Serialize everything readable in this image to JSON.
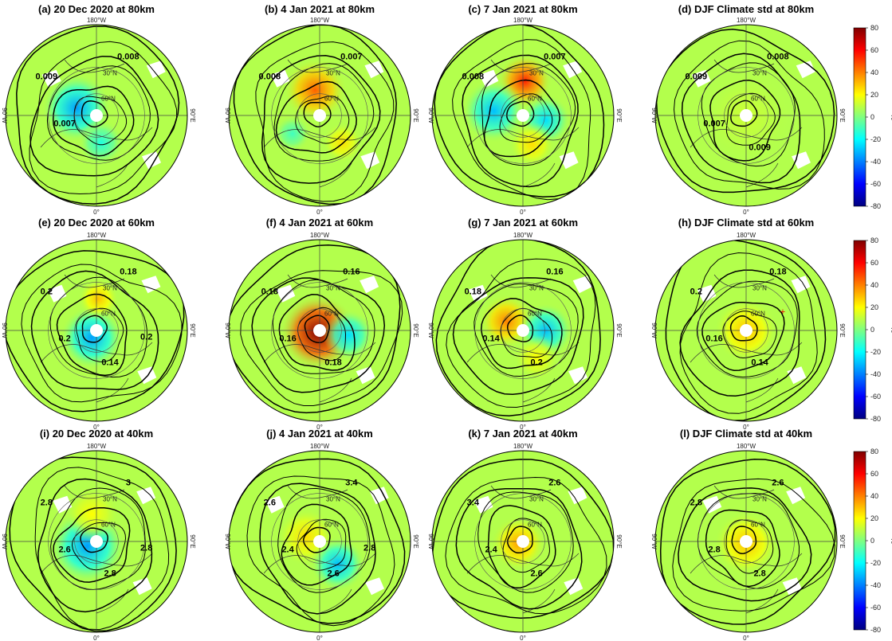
{
  "chart_data": {
    "type": "heatmap",
    "projection": "north-polar-stereographic",
    "colorbar": {
      "ticks": [
        "80",
        "60",
        "40",
        "20",
        "0",
        "-20",
        "-40",
        "-60",
        "-80"
      ],
      "range": [
        -80,
        80
      ],
      "unit": "%",
      "colormap": "jet"
    },
    "map_labels": {
      "top": "180°W",
      "bottom": "0°",
      "left": "90°W",
      "right": "90°E",
      "lat30": "30°N",
      "lat60": "60°N"
    },
    "rows": [
      "80km",
      "60km",
      "40km"
    ],
    "columns": [
      "20 Dec 2020",
      "4 Jan 2021",
      "7 Jan 2021",
      "DJF Climate std"
    ],
    "panels": [
      {
        "title": "(a) 20 Dec 2020 at 80km",
        "contour_labels": [
          "0.009",
          "0.008",
          "0.007"
        ],
        "anomaly": [
          {
            "dx": -0.22,
            "dy": -0.08,
            "r": 0.38,
            "v": -35
          },
          {
            "dx": 0.05,
            "dy": 0.3,
            "r": 0.25,
            "v": -15
          }
        ]
      },
      {
        "title": "(b) 4 Jan 2021 at 80km",
        "contour_labels": [
          "0.008",
          "0.007"
        ],
        "anomaly": [
          {
            "dx": -0.05,
            "dy": -0.28,
            "r": 0.35,
            "v": 45
          },
          {
            "dx": 0.25,
            "dy": 0.3,
            "r": 0.22,
            "v": 25
          },
          {
            "dx": -0.3,
            "dy": 0.2,
            "r": 0.2,
            "v": -10
          }
        ]
      },
      {
        "title": "(c) 7 Jan 2021 at 80km",
        "contour_labels": [
          "0.008",
          "0.007"
        ],
        "anomaly": [
          {
            "dx": 0.02,
            "dy": -0.38,
            "r": 0.3,
            "v": 55
          },
          {
            "dx": -0.32,
            "dy": -0.05,
            "r": 0.35,
            "v": -30
          },
          {
            "dx": 0.25,
            "dy": 0.05,
            "r": 0.28,
            "v": -25
          },
          {
            "dx": 0.1,
            "dy": 0.32,
            "r": 0.25,
            "v": 25
          }
        ]
      },
      {
        "title": "(d) DJF Climate std at 80km",
        "contour_labels": [
          "0.009",
          "0.008",
          "0.007",
          "0.009"
        ],
        "anomaly": [
          {
            "dx": 0,
            "dy": 0,
            "r": 0.5,
            "v": 12
          }
        ]
      },
      {
        "title": "(e) 20 Dec 2020 at 60km",
        "contour_labels": [
          "0.2",
          "0.18",
          "0.2",
          "0.14",
          "0.2"
        ],
        "anomaly": [
          {
            "dx": -0.05,
            "dy": 0.08,
            "r": 0.35,
            "v": -35
          },
          {
            "dx": 0.02,
            "dy": -0.35,
            "r": 0.22,
            "v": 30
          }
        ]
      },
      {
        "title": "(f) 4 Jan 2021 at 60km",
        "contour_labels": [
          "0.18",
          "0.16",
          "0.16",
          "0.18"
        ],
        "anomaly": [
          {
            "dx": -0.02,
            "dy": 0.02,
            "r": 0.42,
            "v": 80
          },
          {
            "dx": 0.32,
            "dy": 0.05,
            "r": 0.28,
            "v": -25
          }
        ]
      },
      {
        "title": "(g) 7 Jan 2021 at 60km",
        "contour_labels": [
          "0.18",
          "0.16",
          "0.14",
          "0.2"
        ],
        "anomaly": [
          {
            "dx": -0.18,
            "dy": -0.1,
            "r": 0.3,
            "v": 40
          },
          {
            "dx": 0.25,
            "dy": 0.0,
            "r": 0.3,
            "v": -30
          },
          {
            "dx": 0.15,
            "dy": 0.3,
            "r": 0.25,
            "v": 20
          }
        ]
      },
      {
        "title": "(h) DJF Climate std at 60km",
        "contour_labels": [
          "0.2",
          "0.18",
          "0.16",
          "0.14"
        ],
        "anomaly": [
          {
            "dx": 0,
            "dy": 0,
            "r": 0.35,
            "v": 30
          }
        ],
        "marker": true
      },
      {
        "title": "(i) 20 Dec 2020 at 40km",
        "contour_labels": [
          "2.8",
          "3",
          "2.6",
          "2.8",
          "2.8"
        ],
        "anomaly": [
          {
            "dx": -0.1,
            "dy": 0.05,
            "r": 0.42,
            "v": -35
          },
          {
            "dx": -0.05,
            "dy": -0.3,
            "r": 0.3,
            "v": 20
          }
        ]
      },
      {
        "title": "(j) 4 Jan 2021 at 40km",
        "contour_labels": [
          "2.6",
          "3.4",
          "2.4",
          "2.6",
          "2.8"
        ],
        "anomaly": [
          {
            "dx": -0.15,
            "dy": -0.05,
            "r": 0.32,
            "v": 25
          },
          {
            "dx": 0.2,
            "dy": 0.25,
            "r": 0.3,
            "v": -30
          }
        ]
      },
      {
        "title": "(k) 7 Jan 2021 at 40km",
        "contour_labels": [
          "3.4",
          "2.6",
          "2.4",
          "2.6"
        ],
        "anomaly": [
          {
            "dx": -0.05,
            "dy": 0.02,
            "r": 0.3,
            "v": 35
          }
        ]
      },
      {
        "title": "(l) DJF Climate std at 40km",
        "contour_labels": [
          "2.8",
          "2.6",
          "2.8",
          "2.8"
        ],
        "anomaly": [
          {
            "dx": 0,
            "dy": 0.02,
            "r": 0.35,
            "v": 30
          }
        ]
      }
    ]
  }
}
